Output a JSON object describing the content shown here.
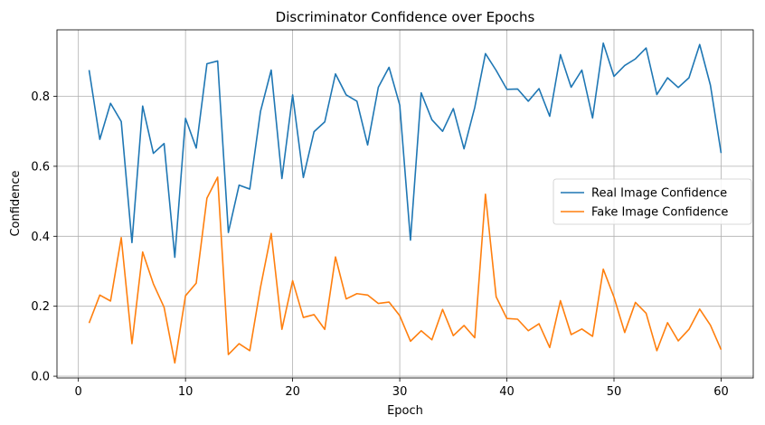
{
  "chart_data": {
    "type": "line",
    "title": "Discriminator Confidence over Epochs",
    "xlabel": "Epoch",
    "ylabel": "Confidence",
    "xlim": [
      -2,
      63
    ],
    "ylim": [
      -0.005,
      0.99
    ],
    "xticks": [
      0,
      10,
      20,
      30,
      40,
      50,
      60
    ],
    "yticks": [
      0.0,
      0.2,
      0.4,
      0.6,
      0.8
    ],
    "grid": true,
    "legend_position": "center-right",
    "x": [
      1,
      2,
      3,
      4,
      5,
      6,
      7,
      8,
      9,
      10,
      11,
      12,
      13,
      14,
      15,
      16,
      17,
      18,
      19,
      20,
      21,
      22,
      23,
      24,
      25,
      26,
      27,
      28,
      29,
      30,
      31,
      32,
      33,
      34,
      35,
      36,
      37,
      38,
      39,
      40,
      41,
      42,
      43,
      44,
      45,
      46,
      47,
      48,
      49,
      50,
      51,
      52,
      53,
      54,
      55,
      56,
      57,
      58,
      59,
      60
    ],
    "series": [
      {
        "name": "Real Image Confidence",
        "color": "#1f77b4",
        "values": [
          0.875,
          0.677,
          0.78,
          0.728,
          0.382,
          0.772,
          0.637,
          0.665,
          0.34,
          0.737,
          0.652,
          0.893,
          0.901,
          0.411,
          0.546,
          0.535,
          0.757,
          0.875,
          0.565,
          0.804,
          0.568,
          0.699,
          0.727,
          0.864,
          0.804,
          0.786,
          0.661,
          0.826,
          0.883,
          0.775,
          0.389,
          0.81,
          0.733,
          0.7,
          0.765,
          0.65,
          0.768,
          0.922,
          0.874,
          0.82,
          0.821,
          0.786,
          0.822,
          0.743,
          0.919,
          0.826,
          0.875,
          0.738,
          0.952,
          0.857,
          0.888,
          0.907,
          0.938,
          0.805,
          0.853,
          0.825,
          0.853,
          0.948,
          0.832,
          0.638
        ]
      },
      {
        "name": "Fake Image Confidence",
        "color": "#ff7f0e",
        "values": [
          0.152,
          0.232,
          0.215,
          0.396,
          0.093,
          0.355,
          0.264,
          0.197,
          0.038,
          0.23,
          0.266,
          0.509,
          0.569,
          0.062,
          0.093,
          0.073,
          0.254,
          0.408,
          0.134,
          0.273,
          0.168,
          0.176,
          0.134,
          0.341,
          0.221,
          0.236,
          0.232,
          0.208,
          0.212,
          0.173,
          0.1,
          0.13,
          0.104,
          0.191,
          0.116,
          0.145,
          0.11,
          0.52,
          0.227,
          0.165,
          0.163,
          0.13,
          0.15,
          0.082,
          0.216,
          0.119,
          0.135,
          0.114,
          0.306,
          0.226,
          0.125,
          0.211,
          0.18,
          0.073,
          0.153,
          0.101,
          0.134,
          0.192,
          0.146,
          0.076
        ]
      }
    ]
  }
}
